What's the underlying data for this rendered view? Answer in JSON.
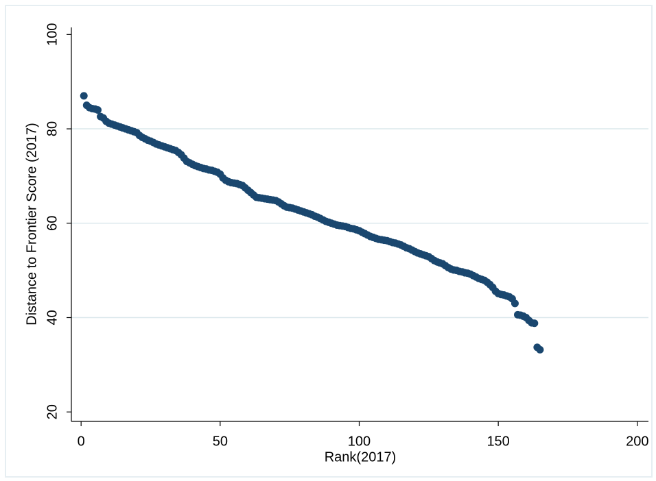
{
  "chart_data": {
    "type": "scatter",
    "xlabel": "Rank(2017)",
    "ylabel": "Distance to Frontier Score (2017)",
    "color": "#1a476f",
    "grid": true,
    "xlim": [
      -3.5,
      204
    ],
    "ylim": [
      18,
      101.5
    ],
    "xticks": [
      0,
      50,
      100,
      150,
      200
    ],
    "yticks": [
      20,
      40,
      60,
      80,
      100
    ],
    "x": [
      1,
      2,
      3,
      4,
      5,
      6,
      7,
      8,
      9,
      10,
      11,
      12,
      13,
      14,
      15,
      16,
      17,
      18,
      19,
      20,
      21,
      22,
      23,
      24,
      25,
      26,
      27,
      28,
      29,
      30,
      31,
      32,
      33,
      34,
      35,
      36,
      37,
      38,
      39,
      40,
      41,
      42,
      43,
      44,
      45,
      46,
      47,
      48,
      49,
      50,
      51,
      52,
      53,
      54,
      55,
      56,
      57,
      58,
      59,
      60,
      61,
      62,
      63,
      64,
      65,
      66,
      67,
      68,
      69,
      70,
      71,
      72,
      73,
      74,
      75,
      76,
      77,
      78,
      79,
      80,
      81,
      82,
      83,
      84,
      85,
      86,
      87,
      88,
      89,
      90,
      91,
      92,
      93,
      94,
      95,
      96,
      97,
      98,
      99,
      100,
      101,
      102,
      103,
      104,
      105,
      106,
      107,
      108,
      109,
      110,
      111,
      112,
      113,
      114,
      115,
      116,
      117,
      118,
      119,
      120,
      121,
      122,
      123,
      124,
      125,
      126,
      127,
      128,
      129,
      130,
      131,
      132,
      133,
      134,
      135,
      136,
      137,
      138,
      139,
      140,
      141,
      142,
      143,
      144,
      145,
      146,
      147,
      148,
      149,
      150,
      151,
      152,
      153,
      154,
      155,
      156,
      157,
      158,
      159,
      160,
      161,
      162,
      163,
      164,
      165
    ],
    "values": [
      87.0,
      85.0,
      84.5,
      84.3,
      84.2,
      84.0,
      82.6,
      82.3,
      81.6,
      81.2,
      81.0,
      80.8,
      80.6,
      80.4,
      80.2,
      80.0,
      79.8,
      79.6,
      79.4,
      79.2,
      78.6,
      78.2,
      77.9,
      77.6,
      77.4,
      77.1,
      76.8,
      76.6,
      76.4,
      76.2,
      76.0,
      75.8,
      75.6,
      75.4,
      75.0,
      74.5,
      73.8,
      73.1,
      72.8,
      72.5,
      72.2,
      72.0,
      71.8,
      71.6,
      71.5,
      71.3,
      71.2,
      71.0,
      70.8,
      70.4,
      69.6,
      69.1,
      68.8,
      68.6,
      68.5,
      68.4,
      68.2,
      68.0,
      67.5,
      67.0,
      66.5,
      66.0,
      65.5,
      65.4,
      65.3,
      65.2,
      65.1,
      65.0,
      64.9,
      64.8,
      64.5,
      64.1,
      63.7,
      63.4,
      63.3,
      63.2,
      63.0,
      62.8,
      62.6,
      62.4,
      62.2,
      62.0,
      61.8,
      61.5,
      61.3,
      61.0,
      60.7,
      60.4,
      60.2,
      60.0,
      59.8,
      59.6,
      59.5,
      59.4,
      59.3,
      59.1,
      58.9,
      58.8,
      58.6,
      58.4,
      58.1,
      57.8,
      57.5,
      57.2,
      57.0,
      56.8,
      56.6,
      56.5,
      56.4,
      56.3,
      56.1,
      55.9,
      55.8,
      55.6,
      55.4,
      55.1,
      54.8,
      54.6,
      54.3,
      54.0,
      53.7,
      53.5,
      53.3,
      53.1,
      52.9,
      52.5,
      52.1,
      51.8,
      51.6,
      51.4,
      51.0,
      50.6,
      50.3,
      50.1,
      50.0,
      49.8,
      49.7,
      49.5,
      49.4,
      49.2,
      48.9,
      48.6,
      48.3,
      48.1,
      47.9,
      47.5,
      47.0,
      46.4,
      45.6,
      45.1,
      44.9,
      44.8,
      44.6,
      44.4,
      44.0,
      43.0,
      40.6,
      40.5,
      40.3,
      40.0,
      39.4,
      38.9,
      38.8,
      33.7,
      33.2
    ]
  }
}
